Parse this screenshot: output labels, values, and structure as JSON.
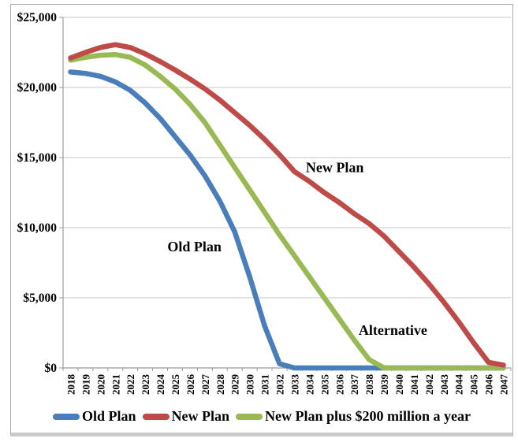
{
  "frame": {
    "background": "#ffffff",
    "border_color": "#a9a9a9",
    "bottom_strip_color": "#c9c9c9"
  },
  "chart_data": {
    "type": "line",
    "title": "",
    "xlabel": "",
    "ylabel": "",
    "x": [
      "2018",
      "2019",
      "2020",
      "2021",
      "2022",
      "2023",
      "2024",
      "2025",
      "2026",
      "2027",
      "2028",
      "2029",
      "2030",
      "2031",
      "2032",
      "2033",
      "2034",
      "2035",
      "2036",
      "2037",
      "2038",
      "2039",
      "2040",
      "2041",
      "2042",
      "2043",
      "2044",
      "2045",
      "2046",
      "2047"
    ],
    "series": [
      {
        "name": "Old Plan",
        "color": "#4a7ebb",
        "values": [
          21100,
          21000,
          20800,
          20400,
          19800,
          18900,
          17800,
          16500,
          15200,
          13700,
          11900,
          9700,
          6500,
          3000,
          300,
          0,
          0,
          0,
          0,
          0,
          0,
          0,
          0,
          0,
          0,
          0,
          0,
          0,
          0,
          0
        ]
      },
      {
        "name": "New Plan",
        "color": "#be4b48",
        "values": [
          22100,
          22500,
          22850,
          23050,
          22850,
          22400,
          21850,
          21250,
          20600,
          19900,
          19100,
          18200,
          17300,
          16300,
          15200,
          14000,
          13300,
          12500,
          11800,
          11000,
          10300,
          9400,
          8300,
          7200,
          6000,
          4700,
          3300,
          1800,
          400,
          200
        ]
      },
      {
        "name": "New Plan plus $200 million a year",
        "color": "#98b954",
        "values": [
          21950,
          22150,
          22300,
          22350,
          22150,
          21600,
          20800,
          19900,
          18800,
          17500,
          15900,
          14300,
          12700,
          11100,
          9500,
          8000,
          6500,
          5000,
          3500,
          2000,
          600,
          0,
          0,
          0,
          0,
          0,
          0,
          0,
          0,
          0
        ]
      }
    ],
    "draw_order": [
      0,
      2,
      1
    ],
    "ylim": [
      0,
      25000
    ],
    "yticks": [
      {
        "value": 0,
        "label": "$0"
      },
      {
        "value": 5000,
        "label": "$5,000"
      },
      {
        "value": 10000,
        "label": "$10,000"
      },
      {
        "value": 15000,
        "label": "$15,000"
      },
      {
        "value": 20000,
        "label": "$20,000"
      },
      {
        "value": 25000,
        "label": "$25,000"
      }
    ],
    "grid": true,
    "legend_position": "bottom",
    "annotations": [
      {
        "text": "Old Plan",
        "year": 2026.3,
        "value": 8650
      },
      {
        "text": "New Plan",
        "year": 2035.7,
        "value": 14300
      },
      {
        "text": "Alternative",
        "year": 2039.6,
        "value": 2700
      }
    ],
    "axis_color": "#9b9b9b",
    "grid_color": "#c9c9c9",
    "text_color": "#000000"
  }
}
